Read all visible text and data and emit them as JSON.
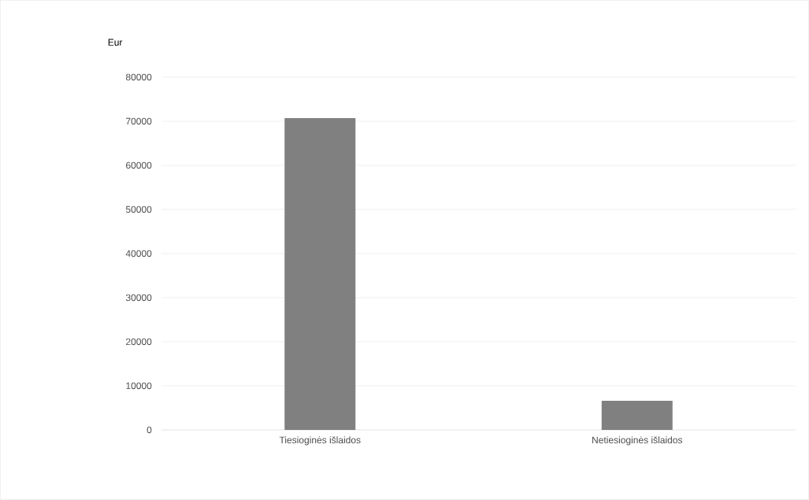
{
  "chart_data": {
    "type": "bar",
    "ylabel": "Eur",
    "categories": [
      "Tiesioginės išlaidos",
      "Netiesioginės išlaidos"
    ],
    "values": [
      70700,
      6600
    ],
    "color": "#808080",
    "ylim": [
      0,
      80000
    ],
    "yticks": [
      0,
      10000,
      20000,
      30000,
      40000,
      50000,
      60000,
      70000,
      80000
    ],
    "grid": "y"
  }
}
